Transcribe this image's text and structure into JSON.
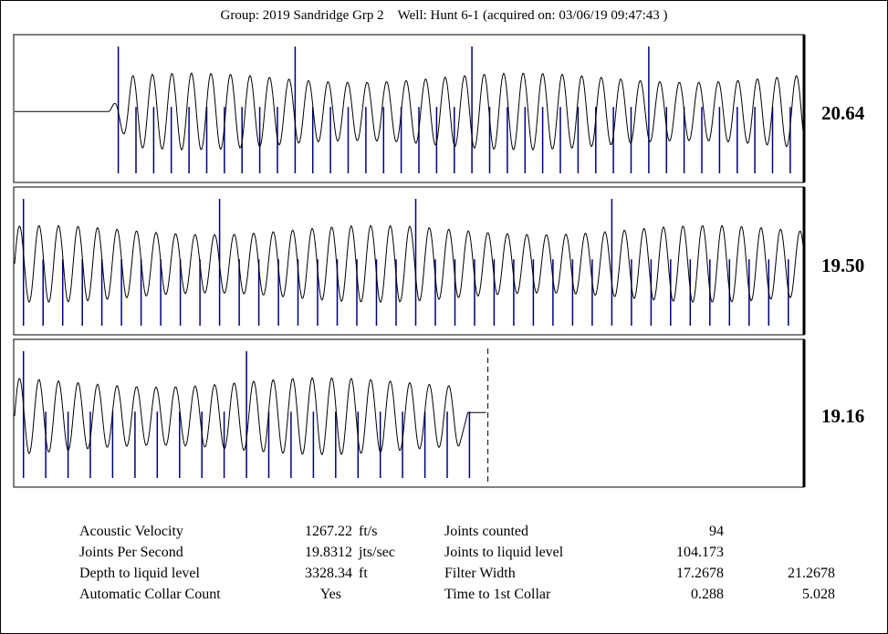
{
  "header": {
    "group_label": "Group:",
    "group": "2019 Sandridge Grp 2",
    "well_label": "Well:",
    "well": "Hunt 6-1",
    "acquired": "(acquired on: 03/06/19 09:47:43 )"
  },
  "chart_data": {
    "type": "line",
    "title": "",
    "panels": [
      {
        "value": "20.64",
        "flat_until": 0.12,
        "collars": 39,
        "major_every": 10,
        "end": 1.0
      },
      {
        "value": "19.50",
        "flat_until": 0.0,
        "collars": 40,
        "major_every": 10,
        "end": 1.0
      },
      {
        "value": "19.16",
        "flat_until": 0.0,
        "collars": 21,
        "major_every": 10,
        "end": 0.6,
        "liquid_level_marker": true
      }
    ],
    "colors": {
      "trace": "#000000",
      "collar": "#000080",
      "axis": "#000000"
    }
  },
  "stats": {
    "left": [
      {
        "label": "Acoustic Velocity",
        "value": "1267.22",
        "unit": "ft/s"
      },
      {
        "label": "Joints Per Second",
        "value": "19.8312",
        "unit": "jts/sec"
      },
      {
        "label": "Depth to liquid level",
        "value": "3328.34",
        "unit": "ft"
      },
      {
        "label": "Automatic Collar Count",
        "value": "Yes",
        "unit": ""
      }
    ],
    "right": [
      {
        "label": "Joints counted",
        "value": "94",
        "value2": ""
      },
      {
        "label": "Joints to liquid level",
        "value": "104.173",
        "value2": ""
      },
      {
        "label": "Filter Width",
        "value": "17.2678",
        "value2": "21.2678"
      },
      {
        "label": "Time to 1st Collar",
        "value": "0.288",
        "value2": "5.028"
      }
    ]
  }
}
